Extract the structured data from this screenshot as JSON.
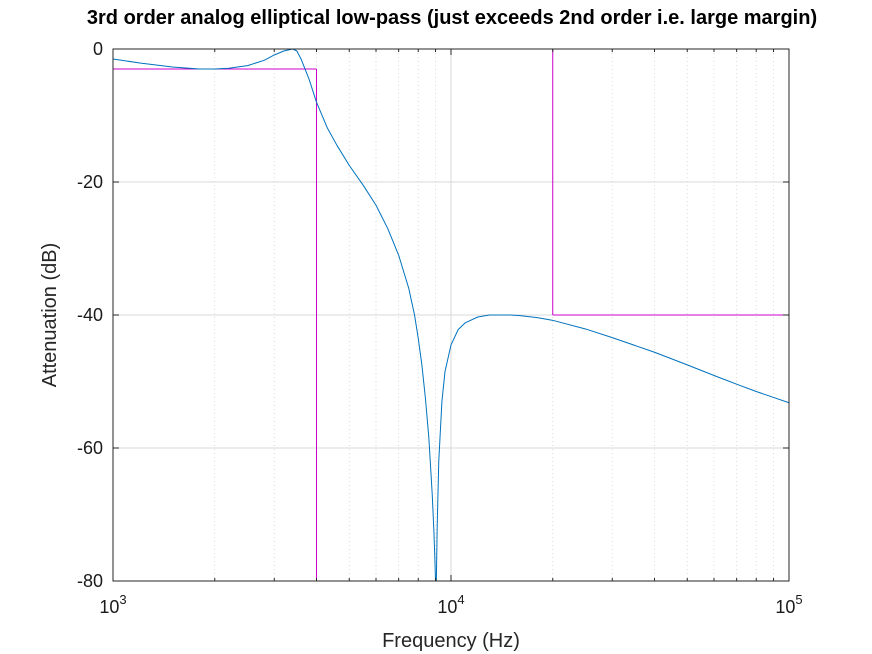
{
  "chart_data": {
    "type": "line",
    "title": "3rd order analog elliptical low-pass (just exceeds 2nd order i.e. large margin)",
    "xlabel": "Frequency (Hz)",
    "ylabel": "Attenuation (dB)",
    "xscale": "log",
    "xlim": [
      1000,
      100000
    ],
    "ylim": [
      -80,
      0
    ],
    "grid": true,
    "x_tick_labels": [
      {
        "base": "10",
        "exp": "3",
        "value": 1000
      },
      {
        "base": "10",
        "exp": "4",
        "value": 10000
      },
      {
        "base": "10",
        "exp": "5",
        "value": 100000
      }
    ],
    "y_tick_labels": [
      {
        "label": "0",
        "value": 0
      },
      {
        "label": "-20",
        "value": -20
      },
      {
        "label": "-40",
        "value": -40
      },
      {
        "label": "-60",
        "value": -60
      },
      {
        "label": "-80",
        "value": -80
      }
    ],
    "colors": {
      "response": "#0072bd",
      "mask": "#cc00cc",
      "grid": "#d9d9d9",
      "axes": "#262626"
    },
    "series": [
      {
        "x": [
          1000,
          1200,
          1500,
          1800,
          2000,
          2200,
          2500,
          2800,
          3000,
          3200,
          3400,
          3500,
          3600,
          3800,
          4000,
          4300,
          4600,
          5000,
          5500,
          6000,
          6500,
          7000,
          7500,
          7800,
          8000,
          8200,
          8400,
          8600,
          8800,
          8900,
          8950,
          9000,
          9050,
          9100,
          9200,
          9400,
          9600,
          10000,
          10500,
          11000,
          12000,
          13000,
          14000,
          15000,
          16000,
          18000,
          20000,
          25000,
          30000,
          40000,
          50000,
          60000,
          70000,
          80000,
          90000,
          100000
        ],
        "y": [
          -1.5,
          -2.1,
          -2.7,
          -3.0,
          -3.0,
          -2.9,
          -2.5,
          -1.7,
          -0.9,
          -0.3,
          0,
          -0.3,
          -1.5,
          -4.5,
          -8.0,
          -11.8,
          -14.5,
          -17.5,
          -20.5,
          -23.5,
          -27.0,
          -31.0,
          -36.0,
          -40.0,
          -43.5,
          -47.5,
          -52.5,
          -58.5,
          -67.0,
          -72.5,
          -76.0,
          -80,
          -80,
          -72.0,
          -62.0,
          -53.0,
          -48.5,
          -44.5,
          -42.2,
          -41.2,
          -40.3,
          -40.0,
          -40.0,
          -40.0,
          -40.1,
          -40.4,
          -40.8,
          -42.1,
          -43.4,
          -45.6,
          -47.5,
          -49.1,
          -50.4,
          -51.5,
          -52.4,
          -53.2
        ]
      }
    ],
    "mask": {
      "passband": {
        "x": [
          1000,
          4000
        ],
        "y": [
          -3,
          -3
        ]
      },
      "passband_edge": {
        "x": [
          4000,
          4000
        ],
        "y": [
          -3,
          -80
        ]
      },
      "top": {
        "x": [
          1000,
          20000
        ],
        "y": [
          0,
          0
        ]
      },
      "stopband_edge": {
        "x": [
          20000,
          20000
        ],
        "y": [
          0,
          -40
        ]
      },
      "stopband": {
        "x": [
          20000,
          100000
        ],
        "y": [
          -40,
          -40
        ]
      }
    }
  }
}
